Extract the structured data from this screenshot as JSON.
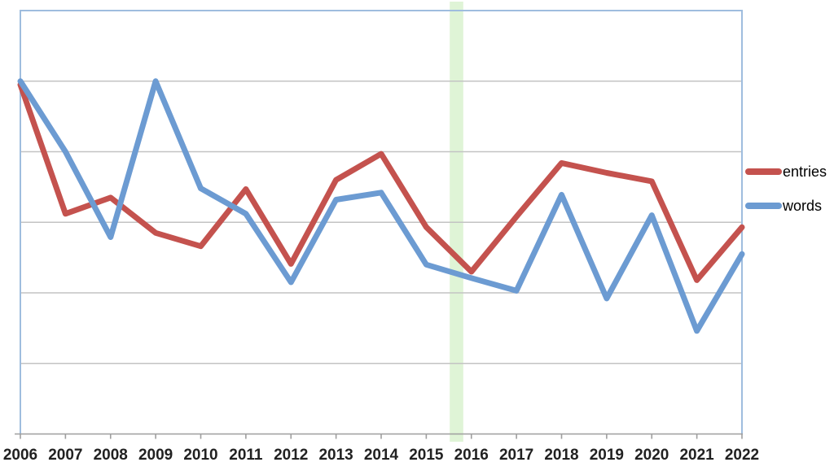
{
  "chart_data": {
    "type": "line",
    "title": "",
    "xlabel": "",
    "ylabel": "",
    "x": [
      2006,
      2007,
      2008,
      2009,
      2010,
      2011,
      2012,
      2013,
      2014,
      2015,
      2016,
      2017,
      2018,
      2019,
      2020,
      2021,
      2022
    ],
    "series": [
      {
        "name": "entries",
        "color": "#C4524E",
        "values": [
          4.95,
          3.12,
          3.35,
          2.85,
          2.66,
          3.47,
          2.41,
          3.6,
          3.97,
          2.93,
          2.3,
          3.08,
          3.84,
          3.7,
          3.58,
          2.18,
          2.93
        ]
      },
      {
        "name": "words",
        "color": "#6C9BD2",
        "values": [
          5.0,
          4.0,
          2.79,
          5.0,
          3.48,
          3.12,
          2.15,
          3.32,
          3.42,
          2.4,
          2.21,
          2.03,
          3.39,
          1.92,
          3.1,
          1.46,
          2.55
        ]
      }
    ],
    "ylim": [
      0,
      6
    ],
    "y_gridlines": [
      1,
      2,
      3,
      4,
      5
    ],
    "y_axis_labels_visible": false,
    "grid": true,
    "legend_position": "right",
    "highlight_band": {
      "from_x": 2015.52,
      "to_x": 2015.82,
      "color": "#D9F2CF"
    }
  },
  "legend": {
    "entries_label": "entries",
    "words_label": "words"
  },
  "colors": {
    "plot_border": "#9FBDDE",
    "gridline": "#C3C3C3",
    "axis": "#9E9E9E",
    "tick_label": "#212121",
    "background": "#FFFFFF"
  }
}
